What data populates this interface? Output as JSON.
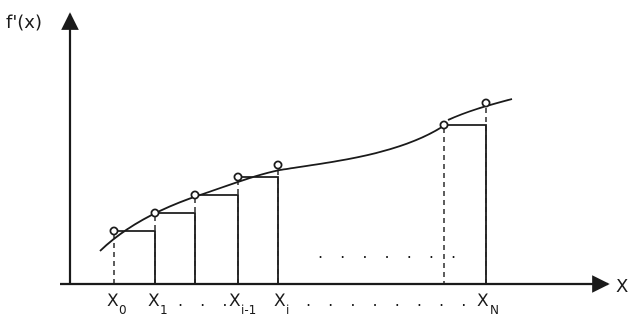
{
  "figure": {
    "y_axis_label": "f'(x)",
    "x_axis_label": "X",
    "tick_labels": [
      {
        "base": "X",
        "sub": "0"
      },
      {
        "base": "X",
        "sub": "1"
      },
      {
        "base": "X",
        "sub": "i-1"
      },
      {
        "base": "X",
        "sub": "i"
      },
      {
        "base": "X",
        "sub": "N"
      }
    ],
    "ellipsis_axis_1": ". . .",
    "ellipsis_axis_2": ". . . . . . . .",
    "ellipsis_middle": ". . . . . . ."
  }
}
